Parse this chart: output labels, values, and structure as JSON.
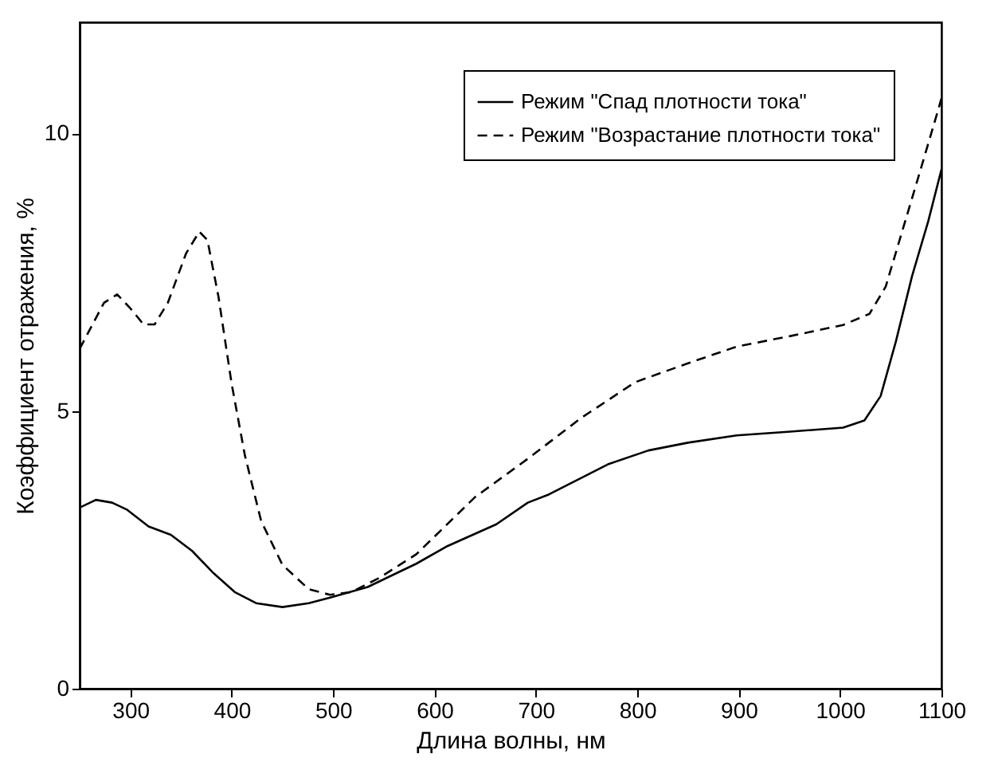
{
  "chart_data": {
    "type": "line",
    "xlabel": "Длина волны, нм",
    "ylabel": "Коэффициент отражения, %",
    "xlim": [
      250,
      1100
    ],
    "xticks": [
      300,
      400,
      500,
      600,
      700,
      800,
      900,
      1000,
      1100
    ],
    "ylim": [
      0,
      12
    ],
    "yticks": [
      0,
      5,
      10
    ],
    "grid": false,
    "legend": "top right",
    "series": [
      {
        "name": "Режим \"Спад плотности тока\"",
        "color": "#000000",
        "line_style": "solid",
        "x": [
          250,
          266,
          282,
          297,
          318,
          340,
          361,
          382,
          403,
          424,
          450,
          476,
          497,
          534,
          582,
          613,
          661,
          692,
          713,
          771,
          811,
          850,
          898,
          951,
          1003,
          1024,
          1040,
          1055,
          1071,
          1087,
          1100
        ],
        "values": [
          3.26,
          3.4,
          3.35,
          3.22,
          2.92,
          2.77,
          2.48,
          2.08,
          1.74,
          1.54,
          1.47,
          1.54,
          1.64,
          1.83,
          2.25,
          2.57,
          2.96,
          3.35,
          3.5,
          4.04,
          4.29,
          4.43,
          4.56,
          4.63,
          4.7,
          4.83,
          5.27,
          6.25,
          7.43,
          8.42,
          9.35
        ]
      },
      {
        "name": "Режим \"Возрастание плотности тока\"",
        "color": "#000000",
        "line_style": "dashed",
        "x": [
          250,
          261,
          274,
          287,
          300,
          313,
          324,
          337,
          355,
          368,
          376,
          387,
          400,
          413,
          429,
          450,
          476,
          497,
          518,
          545,
          582,
          640,
          692,
          745,
          798,
          850,
          898,
          951,
          1003,
          1029,
          1045,
          1061,
          1077,
          1093,
          1100
        ],
        "values": [
          6.12,
          6.5,
          6.95,
          7.1,
          6.85,
          6.56,
          6.56,
          6.95,
          7.84,
          8.23,
          8.08,
          7.05,
          5.48,
          4.2,
          3.02,
          2.23,
          1.79,
          1.69,
          1.74,
          1.99,
          2.42,
          3.45,
          4.14,
          4.88,
          5.52,
          5.86,
          6.16,
          6.35,
          6.55,
          6.75,
          7.24,
          8.22,
          9.2,
          10.19,
          10.63
        ]
      }
    ]
  }
}
